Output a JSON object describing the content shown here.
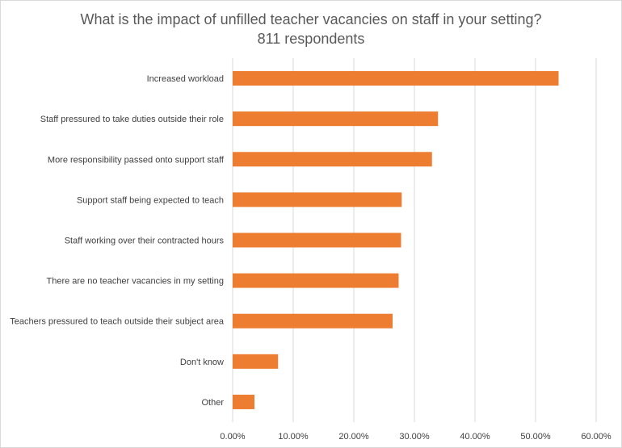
{
  "chart_data": {
    "type": "bar",
    "orientation": "horizontal",
    "title": "What is the impact of unfilled teacher vacancies on staff in your setting?",
    "subtitle": "811 respondents",
    "categories": [
      "Increased workload",
      "Staff pressured to take duties outside their role",
      "More responsibility passed onto support staff",
      "Support staff being expected to teach",
      "Staff working over their contracted hours",
      "There are no teacher vacancies in my setting",
      "Teachers pressured to teach outside their subject area",
      "Don't know",
      "Other"
    ],
    "values": [
      53.8,
      33.9,
      32.9,
      27.9,
      27.8,
      27.4,
      26.4,
      7.5,
      3.6
    ],
    "xlim": [
      0,
      60
    ],
    "xticks": [
      0,
      10,
      20,
      30,
      40,
      50,
      60
    ],
    "xtick_labels": [
      "0.00%",
      "10.00%",
      "20.00%",
      "30.00%",
      "40.00%",
      "50.00%",
      "60.00%"
    ],
    "bar_color": "#ED7D31",
    "grid": true
  }
}
